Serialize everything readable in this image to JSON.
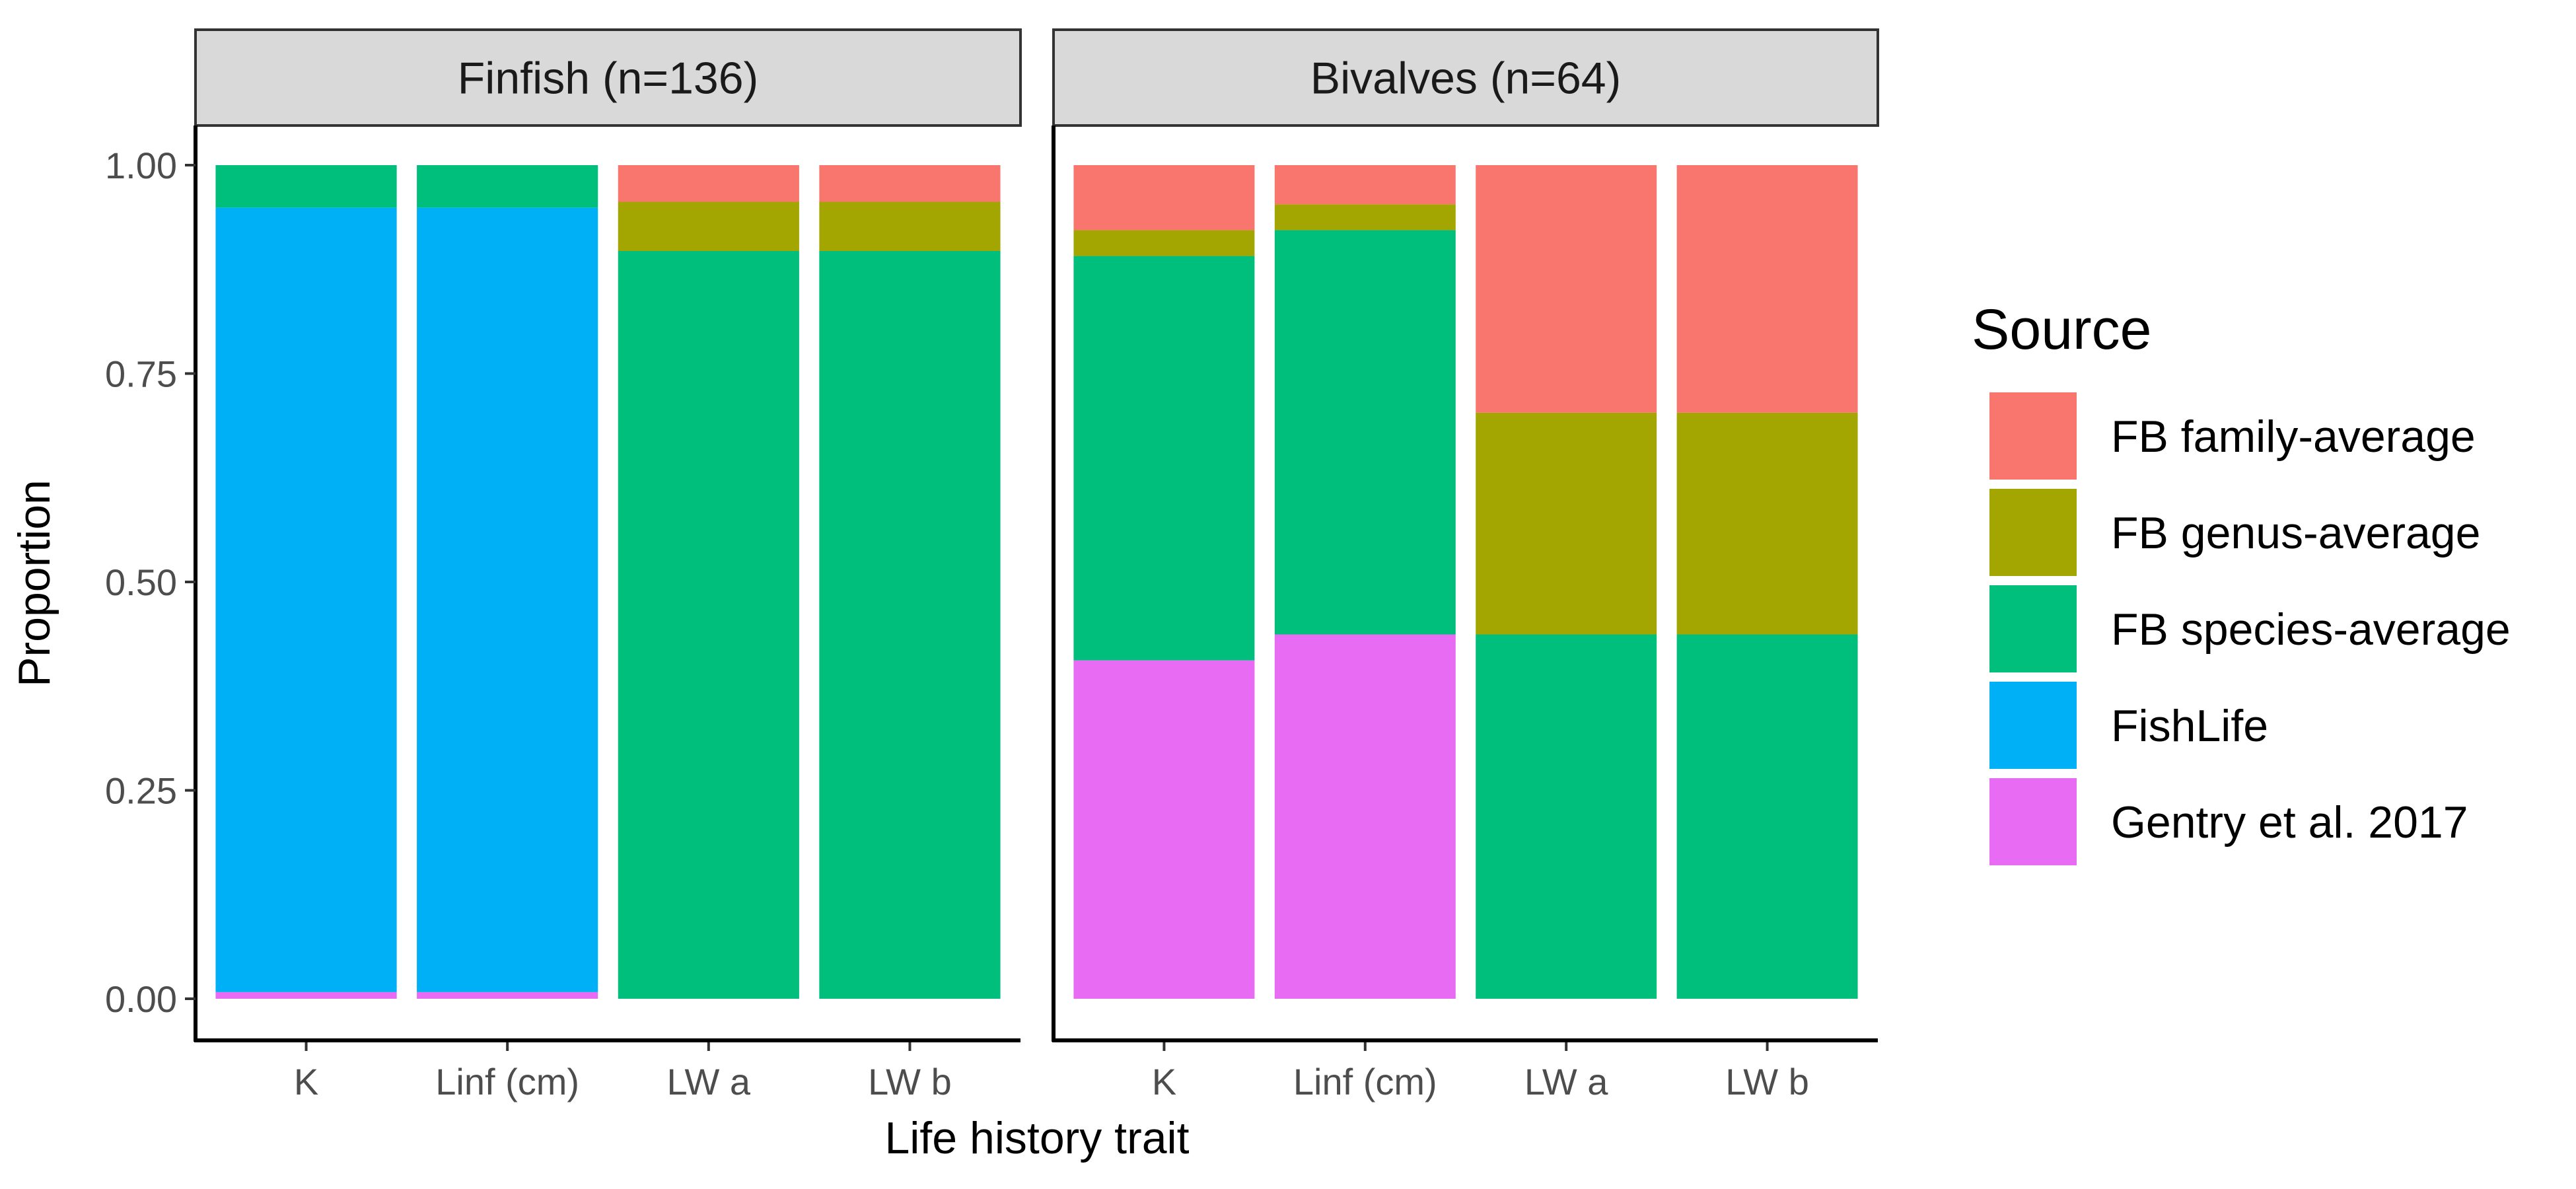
{
  "chart_data": {
    "type": "bar",
    "stacked": true,
    "xlabel": "Life history trait",
    "ylabel": "Proportion",
    "ylim": [
      0,
      1
    ],
    "yticks": [
      "0.00",
      "0.25",
      "0.50",
      "0.75",
      "1.00"
    ],
    "yticks_values": [
      0,
      0.25,
      0.5,
      0.75,
      1.0
    ],
    "categories": [
      "K",
      "Linf (cm)",
      "LW a",
      "LW b"
    ],
    "grid": false,
    "legend": {
      "title": "Source",
      "position": "right",
      "entries": [
        {
          "name": "FB family-average",
          "color": "#F8766D"
        },
        {
          "name": "FB genus-average",
          "color": "#A3A500"
        },
        {
          "name": "FB species-average",
          "color": "#00BF7D"
        },
        {
          "name": "FishLife",
          "color": "#00B0F6"
        },
        {
          "name": "Gentry et al. 2017",
          "color": "#E76BF3"
        }
      ]
    },
    "stack_order_bottom_to_top": [
      "Gentry et al. 2017",
      "FishLife",
      "FB species-average",
      "FB genus-average",
      "FB family-average"
    ],
    "facets": [
      {
        "strip": "Finfish (n=136)",
        "series": [
          {
            "name": "FB family-average",
            "values": [
              0,
              0,
              0.044,
              0.044
            ]
          },
          {
            "name": "FB genus-average",
            "values": [
              0,
              0,
              0.059,
              0.059
            ]
          },
          {
            "name": "FB species-average",
            "values": [
              0.051,
              0.051,
              0.897,
              0.897
            ]
          },
          {
            "name": "FishLife",
            "values": [
              0.941,
              0.941,
              0,
              0
            ]
          },
          {
            "name": "Gentry et al. 2017",
            "values": [
              0.008,
              0.008,
              0,
              0
            ]
          }
        ]
      },
      {
        "strip": "Bivalves (n=64)",
        "series": [
          {
            "name": "FB family-average",
            "values": [
              0.078,
              0.047,
              0.297,
              0.297
            ]
          },
          {
            "name": "FB genus-average",
            "values": [
              0.031,
              0.031,
              0.266,
              0.266
            ]
          },
          {
            "name": "FB species-average",
            "values": [
              0.485,
              0.485,
              0.437,
              0.437
            ]
          },
          {
            "name": "FishLife",
            "values": [
              0,
              0,
              0,
              0
            ]
          },
          {
            "name": "Gentry et al. 2017",
            "values": [
              0.406,
              0.437,
              0,
              0
            ]
          }
        ]
      }
    ]
  }
}
